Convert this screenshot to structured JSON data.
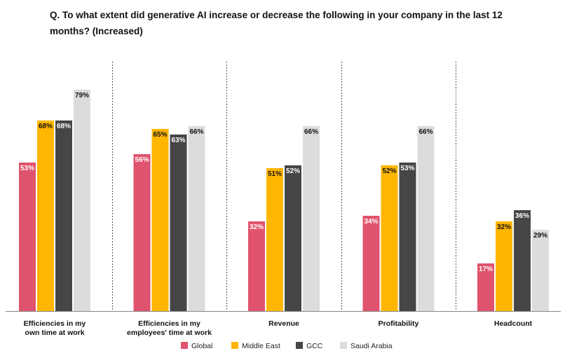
{
  "chart_data": {
    "type": "bar",
    "title": "Q. To what extent did generative AI increase or decrease the following in your company in the last 12 months? (Increased)",
    "categories": [
      [
        "Efficiencies in my",
        "own time at work"
      ],
      [
        "Efficiencies in my",
        "employees' time at work"
      ],
      [
        "Revenue"
      ],
      [
        "Profitability"
      ],
      [
        "Headcount"
      ]
    ],
    "series": [
      {
        "name": "Global",
        "color": "#e0536e",
        "label_color": "#ffffff",
        "values": [
          53,
          56,
          32,
          34,
          17
        ]
      },
      {
        "name": "Middle East",
        "color": "#ffb600",
        "label_color": "#111111",
        "values": [
          68,
          65,
          51,
          52,
          32
        ]
      },
      {
        "name": "GCC",
        "color": "#464646",
        "label_color": "#ffffff",
        "values": [
          68,
          63,
          52,
          53,
          36
        ]
      },
      {
        "name": "Saudi Arabia",
        "color": "#dcdcdc",
        "label_color": "#111111",
        "values": [
          79,
          66,
          66,
          66,
          29
        ]
      }
    ],
    "value_suffix": "%",
    "ylim": [
      0,
      100
    ],
    "xlabel": "",
    "ylabel": "",
    "grid": false,
    "legend_position": "bottom-center"
  }
}
